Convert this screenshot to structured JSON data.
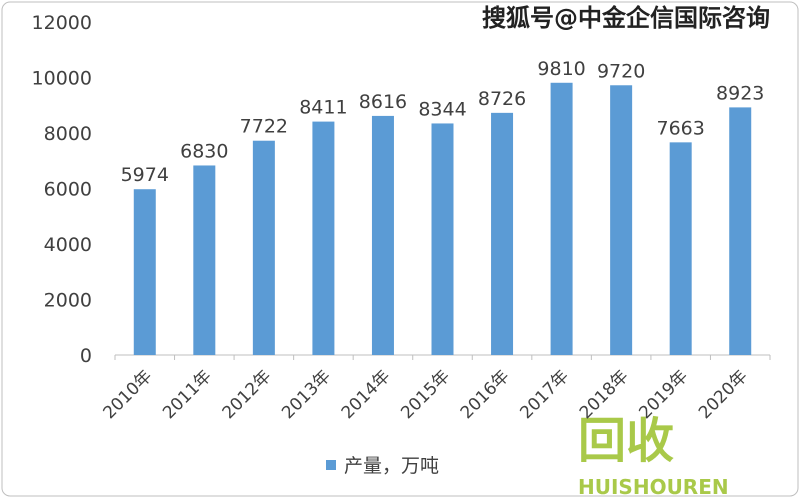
{
  "chart_data": {
    "type": "bar",
    "categories": [
      "2010年",
      "2011年",
      "2012年",
      "2013年",
      "2014年",
      "2015年",
      "2016年",
      "2017年",
      "2018年",
      "2019年",
      "2020年"
    ],
    "series": [
      {
        "name": "产量，万吨",
        "color": "#5b9bd5",
        "values": [
          5974,
          6830,
          7722,
          8411,
          8616,
          8344,
          8726,
          9810,
          9720,
          7663,
          8923
        ]
      }
    ],
    "ylim": [
      0,
      12000
    ],
    "yticks": [
      0,
      2000,
      4000,
      6000,
      8000,
      10000,
      12000
    ],
    "grid": false,
    "legend": "bottom",
    "watermarks": [
      "搜狐号@中金企信国际咨询",
      "回收",
      "HUISHOUREN"
    ]
  }
}
